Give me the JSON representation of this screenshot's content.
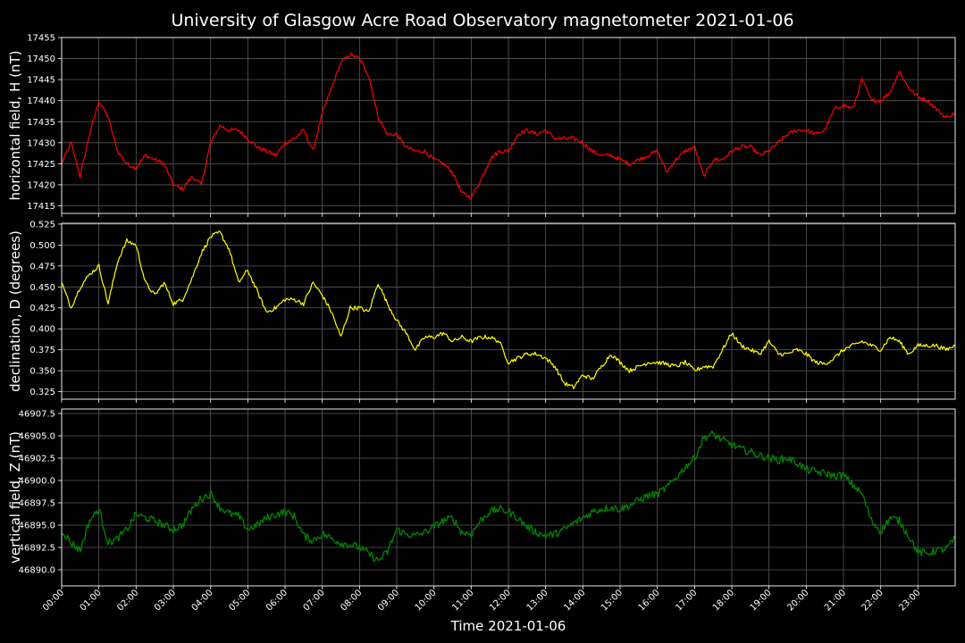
{
  "title": "University of Glasgow Acre Road Observatory magnetometer 2021-01-06",
  "chart_data": [
    {
      "type": "line",
      "ylabel": "horizontal field, H (nT)",
      "color": "#ff0000",
      "ylim": [
        17413.2,
        17455
      ],
      "yticks": [
        17415,
        17420,
        17425,
        17430,
        17435,
        17440,
        17445,
        17450,
        17455
      ],
      "series": [
        {
          "x": [
            0,
            0.25,
            0.5,
            0.75,
            1,
            1.25,
            1.5,
            1.75,
            2,
            2.25,
            2.5,
            2.75,
            3,
            3.25,
            3.5,
            3.75,
            4,
            4.25,
            4.5,
            4.75,
            5,
            5.25,
            5.5,
            5.75,
            6,
            6.25,
            6.5,
            6.75,
            7,
            7.25,
            7.5,
            7.75,
            8,
            8.25,
            8.5,
            8.75,
            9,
            9.25,
            9.5,
            9.75,
            10,
            10.25,
            10.5,
            10.75,
            11,
            11.25,
            11.5,
            11.75,
            12,
            12.25,
            12.5,
            12.75,
            13,
            13.25,
            13.5,
            13.75,
            14,
            14.25,
            14.5,
            14.75,
            15,
            15.25,
            15.5,
            15.75,
            16,
            16.25,
            16.5,
            16.75,
            17,
            17.25,
            17.5,
            17.75,
            18,
            18.25,
            18.5,
            18.75,
            19,
            19.25,
            19.5,
            19.75,
            20,
            20.25,
            20.5,
            20.75,
            21,
            21.25,
            21.5,
            21.75,
            22,
            22.25,
            22.5,
            22.75,
            23,
            23.25,
            23.5,
            23.75,
            24
          ],
          "y": [
            17425,
            17430,
            17422,
            17432,
            17440,
            17436,
            17428,
            17425,
            17424,
            17427,
            17426,
            17425,
            17420,
            17419,
            17422,
            17420,
            17430,
            17434,
            17433,
            17433,
            17431,
            17429,
            17428,
            17427,
            17430,
            17431,
            17433,
            17428,
            17437,
            17443,
            17449,
            17451,
            17450,
            17446,
            17436,
            17432,
            17432,
            17429,
            17428,
            17428,
            17426,
            17425,
            17423,
            17418,
            17417,
            17421,
            17426,
            17428,
            17428,
            17432,
            17433,
            17432,
            17433,
            17431,
            17431,
            17431,
            17430,
            17428,
            17427,
            17427,
            17426,
            17425,
            17426,
            17427,
            17428,
            17423,
            17426,
            17428,
            17429,
            17422,
            17426,
            17426,
            17428,
            17429,
            17429,
            17427,
            17428,
            17430,
            17432,
            17433,
            17433,
            17432,
            17433,
            17438,
            17439,
            17438,
            17445,
            17440,
            17440,
            17442,
            17447,
            17443,
            17441,
            17440,
            17438,
            17436,
            17437
          ]
        }
      ]
    },
    {
      "type": "line",
      "ylabel": "declination, D (degrees)",
      "color": "#ffff00",
      "ylim": [
        0.316,
        0.526
      ],
      "yticks": [
        0.325,
        0.35,
        0.375,
        0.4,
        0.425,
        0.45,
        0.475,
        0.5,
        0.525
      ],
      "ytick_labels": [
        "0.325",
        "0.350",
        "0.375",
        "0.400",
        "0.425",
        "0.450",
        "0.475",
        "0.500",
        "0.525"
      ],
      "series": [
        {
          "x": [
            0,
            0.25,
            0.5,
            0.75,
            1,
            1.25,
            1.5,
            1.75,
            2,
            2.25,
            2.5,
            2.75,
            3,
            3.25,
            3.5,
            3.75,
            4,
            4.25,
            4.5,
            4.75,
            5,
            5.25,
            5.5,
            5.75,
            6,
            6.25,
            6.5,
            6.75,
            7,
            7.25,
            7.5,
            7.75,
            8,
            8.25,
            8.5,
            8.75,
            9,
            9.25,
            9.5,
            9.75,
            10,
            10.25,
            10.5,
            10.75,
            11,
            11.25,
            11.5,
            11.75,
            12,
            12.25,
            12.5,
            12.75,
            13,
            13.25,
            13.5,
            13.75,
            14,
            14.25,
            14.5,
            14.75,
            15,
            15.25,
            15.5,
            15.75,
            16,
            16.25,
            16.5,
            16.75,
            17,
            17.25,
            17.5,
            17.75,
            18,
            18.25,
            18.5,
            18.75,
            19,
            19.25,
            19.5,
            19.75,
            20,
            20.25,
            20.5,
            20.75,
            21,
            21.25,
            21.5,
            21.75,
            22,
            22.25,
            22.5,
            22.75,
            23,
            23.25,
            23.5,
            23.75,
            24
          ],
          "y": [
            0.455,
            0.425,
            0.45,
            0.465,
            0.475,
            0.43,
            0.48,
            0.505,
            0.5,
            0.455,
            0.44,
            0.455,
            0.43,
            0.435,
            0.46,
            0.49,
            0.51,
            0.515,
            0.495,
            0.455,
            0.47,
            0.445,
            0.42,
            0.425,
            0.435,
            0.435,
            0.43,
            0.455,
            0.44,
            0.42,
            0.39,
            0.425,
            0.425,
            0.42,
            0.455,
            0.43,
            0.41,
            0.395,
            0.375,
            0.39,
            0.39,
            0.395,
            0.385,
            0.39,
            0.385,
            0.39,
            0.39,
            0.385,
            0.36,
            0.365,
            0.37,
            0.37,
            0.365,
            0.355,
            0.335,
            0.33,
            0.345,
            0.34,
            0.355,
            0.37,
            0.36,
            0.35,
            0.355,
            0.36,
            0.36,
            0.358,
            0.355,
            0.36,
            0.35,
            0.355,
            0.355,
            0.375,
            0.395,
            0.38,
            0.375,
            0.37,
            0.385,
            0.37,
            0.37,
            0.375,
            0.37,
            0.36,
            0.358,
            0.365,
            0.375,
            0.38,
            0.385,
            0.38,
            0.375,
            0.39,
            0.385,
            0.37,
            0.38,
            0.38,
            0.38,
            0.375,
            0.38
          ]
        }
      ]
    },
    {
      "type": "line",
      "ylabel": "vertical field, Z (nT)",
      "color": "#008000",
      "ylim": [
        46888.2,
        46908
      ],
      "yticks": [
        46890,
        46892.5,
        46895,
        46897.5,
        46900,
        46902.5,
        46905,
        46907.5
      ],
      "ytick_labels": [
        "46890.0",
        "46892.5",
        "46895.0",
        "46897.5",
        "46900.0",
        "46902.5",
        "46905.0",
        "46907.5"
      ],
      "series": [
        {
          "x": [
            0,
            0.25,
            0.5,
            0.75,
            1,
            1.25,
            1.5,
            1.75,
            2,
            2.25,
            2.5,
            2.75,
            3,
            3.25,
            3.5,
            3.75,
            4,
            4.25,
            4.5,
            4.75,
            5,
            5.25,
            5.5,
            5.75,
            6,
            6.25,
            6.5,
            6.75,
            7,
            7.25,
            7.5,
            7.75,
            8,
            8.25,
            8.5,
            8.75,
            9,
            9.25,
            9.5,
            9.75,
            10,
            10.25,
            10.5,
            10.75,
            11,
            11.25,
            11.5,
            11.75,
            12,
            12.25,
            12.5,
            12.75,
            13,
            13.25,
            13.5,
            13.75,
            14,
            14.25,
            14.5,
            14.75,
            15,
            15.25,
            15.5,
            15.75,
            16,
            16.25,
            16.5,
            16.75,
            17,
            17.25,
            17.5,
            17.75,
            18,
            18.25,
            18.5,
            18.75,
            19,
            19.25,
            19.5,
            19.75,
            20,
            20.25,
            20.5,
            20.75,
            21,
            21.25,
            21.5,
            21.75,
            22,
            22.25,
            22.5,
            22.75,
            23,
            23.25,
            23.5,
            23.75,
            24
          ],
          "y": [
            46894.5,
            46893,
            46892.2,
            46895.5,
            46896.8,
            46893,
            46893.5,
            46894.5,
            46896.2,
            46895.8,
            46895.5,
            46895,
            46894.5,
            46895,
            46896.8,
            46898,
            46898.5,
            46897,
            46896.3,
            46896,
            46894.5,
            46895,
            46895.8,
            46896.2,
            46896.5,
            46896,
            46893.8,
            46893.3,
            46894,
            46893.5,
            46893,
            46892.8,
            46892.5,
            46891.8,
            46891,
            46892,
            46894.5,
            46894,
            46893.8,
            46894.2,
            46894.8,
            46895.5,
            46895.8,
            46894.2,
            46894,
            46895.5,
            46896.5,
            46896.8,
            46896.5,
            46895.8,
            46894.8,
            46894.2,
            46893.8,
            46894,
            46894.5,
            46895.2,
            46895.8,
            46896.5,
            46896.8,
            46897,
            46896.8,
            46897.2,
            46897.8,
            46898.3,
            46898.5,
            46899.2,
            46900.3,
            46901.5,
            46902.5,
            46904.8,
            46905.2,
            46904.5,
            46904,
            46903.5,
            46903.2,
            46902.8,
            46902.5,
            46902.3,
            46902.5,
            46902,
            46901.2,
            46901,
            46900.8,
            46900.5,
            46900.6,
            46899.5,
            46898.5,
            46895.5,
            46894.3,
            46895.8,
            46895.5,
            46893.8,
            46892,
            46891.8,
            46892.2,
            46892.3,
            46893.5
          ]
        }
      ]
    }
  ],
  "xaxis": {
    "xlabel": "Time 2021-01-06",
    "xlim": [
      0,
      24
    ],
    "ticks": [
      "00:00",
      "01:00",
      "02:00",
      "03:00",
      "04:00",
      "05:00",
      "06:00",
      "07:00",
      "08:00",
      "09:00",
      "10:00",
      "11:00",
      "12:00",
      "13:00",
      "14:00",
      "15:00",
      "16:00",
      "17:00",
      "18:00",
      "19:00",
      "20:00",
      "21:00",
      "22:00",
      "23:00"
    ]
  },
  "grid": true,
  "background": "#000000"
}
